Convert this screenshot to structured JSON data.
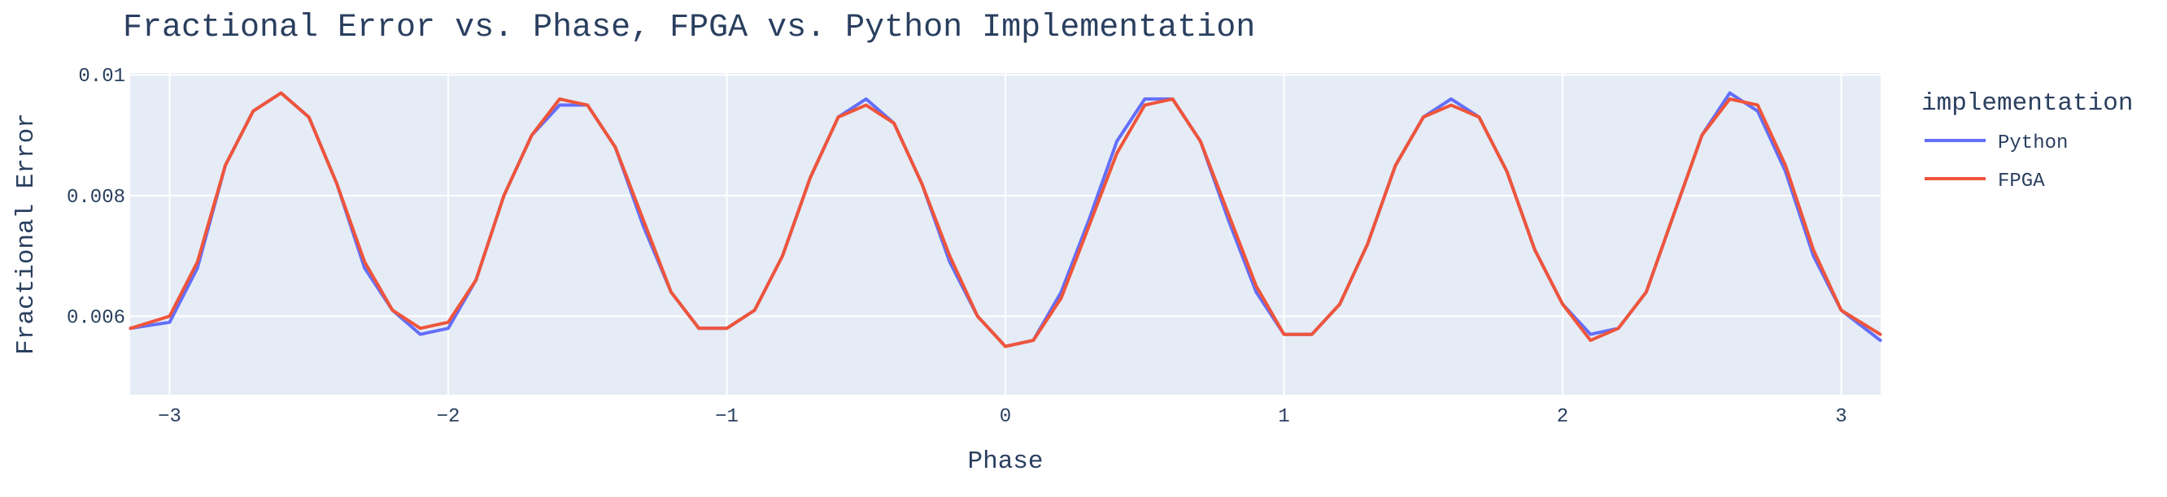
{
  "chart_data": {
    "type": "line",
    "title": "Fractional Error vs. Phase, FPGA vs. Python Implementation",
    "xlabel": "Phase",
    "ylabel": "Fractional Error",
    "xlim": [
      -3.1416,
      3.1416
    ],
    "ylim": [
      0.0047,
      0.01003
    ],
    "x_ticks": [
      -3,
      -2,
      -1,
      0,
      1,
      2,
      3
    ],
    "x_tick_labels": [
      "−3",
      "−2",
      "−1",
      "0",
      "1",
      "2",
      "3"
    ],
    "y_ticks": [
      0.006,
      0.008,
      0.01
    ],
    "y_tick_labels": [
      "0.006",
      "0.008",
      "0.01"
    ],
    "grid": true,
    "legend_title": "implementation",
    "legend_position": "right",
    "series": [
      {
        "name": "Python",
        "color": "#636efa",
        "points": [
          [
            -3.14,
            0.0058
          ],
          [
            -3.0,
            0.0059
          ],
          [
            -2.9,
            0.0068
          ],
          [
            -2.8,
            0.0085
          ],
          [
            -2.7,
            0.0094
          ],
          [
            -2.6,
            0.0097
          ],
          [
            -2.5,
            0.0093
          ],
          [
            -2.4,
            0.0082
          ],
          [
            -2.3,
            0.0068
          ],
          [
            -2.2,
            0.0061
          ],
          [
            -2.1,
            0.0057
          ],
          [
            -2.0,
            0.0058
          ],
          [
            -1.9,
            0.0066
          ],
          [
            -1.8,
            0.008
          ],
          [
            -1.7,
            0.009
          ],
          [
            -1.6,
            0.0095
          ],
          [
            -1.5,
            0.0095
          ],
          [
            -1.4,
            0.0088
          ],
          [
            -1.3,
            0.0075
          ],
          [
            -1.2,
            0.0064
          ],
          [
            -1.1,
            0.0058
          ],
          [
            -1.0,
            0.0058
          ],
          [
            -0.9,
            0.0061
          ],
          [
            -0.8,
            0.007
          ],
          [
            -0.7,
            0.0083
          ],
          [
            -0.6,
            0.0093
          ],
          [
            -0.5,
            0.0096
          ],
          [
            -0.4,
            0.0092
          ],
          [
            -0.3,
            0.0082
          ],
          [
            -0.2,
            0.0069
          ],
          [
            -0.1,
            0.006
          ],
          [
            0.0,
            0.0055
          ],
          [
            0.1,
            0.0056
          ],
          [
            0.2,
            0.0064
          ],
          [
            0.3,
            0.0076
          ],
          [
            0.4,
            0.0089
          ],
          [
            0.5,
            0.0096
          ],
          [
            0.6,
            0.0096
          ],
          [
            0.7,
            0.0089
          ],
          [
            0.8,
            0.0076
          ],
          [
            0.9,
            0.0064
          ],
          [
            1.0,
            0.0057
          ],
          [
            1.1,
            0.0057
          ],
          [
            1.2,
            0.0062
          ],
          [
            1.3,
            0.0072
          ],
          [
            1.4,
            0.0085
          ],
          [
            1.5,
            0.0093
          ],
          [
            1.6,
            0.0096
          ],
          [
            1.7,
            0.0093
          ],
          [
            1.8,
            0.0084
          ],
          [
            1.9,
            0.0071
          ],
          [
            2.0,
            0.0062
          ],
          [
            2.1,
            0.0057
          ],
          [
            2.2,
            0.0058
          ],
          [
            2.3,
            0.0064
          ],
          [
            2.4,
            0.0077
          ],
          [
            2.5,
            0.009
          ],
          [
            2.6,
            0.0097
          ],
          [
            2.7,
            0.0094
          ],
          [
            2.8,
            0.0084
          ],
          [
            2.9,
            0.007
          ],
          [
            3.0,
            0.0061
          ],
          [
            3.14,
            0.0056
          ]
        ]
      },
      {
        "name": "FPGA",
        "color": "#ef553b",
        "points": [
          [
            -3.14,
            0.0058
          ],
          [
            -3.0,
            0.006
          ],
          [
            -2.9,
            0.0069
          ],
          [
            -2.8,
            0.0085
          ],
          [
            -2.7,
            0.0094
          ],
          [
            -2.6,
            0.0097
          ],
          [
            -2.5,
            0.0093
          ],
          [
            -2.4,
            0.0082
          ],
          [
            -2.3,
            0.0069
          ],
          [
            -2.2,
            0.0061
          ],
          [
            -2.1,
            0.0058
          ],
          [
            -2.0,
            0.0059
          ],
          [
            -1.9,
            0.0066
          ],
          [
            -1.8,
            0.008
          ],
          [
            -1.7,
            0.009
          ],
          [
            -1.6,
            0.0096
          ],
          [
            -1.5,
            0.0095
          ],
          [
            -1.4,
            0.0088
          ],
          [
            -1.3,
            0.0076
          ],
          [
            -1.2,
            0.0064
          ],
          [
            -1.1,
            0.0058
          ],
          [
            -1.0,
            0.0058
          ],
          [
            -0.9,
            0.0061
          ],
          [
            -0.8,
            0.007
          ],
          [
            -0.7,
            0.0083
          ],
          [
            -0.6,
            0.0093
          ],
          [
            -0.5,
            0.0095
          ],
          [
            -0.4,
            0.0092
          ],
          [
            -0.3,
            0.0082
          ],
          [
            -0.2,
            0.007
          ],
          [
            -0.1,
            0.006
          ],
          [
            0.0,
            0.0055
          ],
          [
            0.1,
            0.0056
          ],
          [
            0.2,
            0.0063
          ],
          [
            0.3,
            0.0075
          ],
          [
            0.4,
            0.0087
          ],
          [
            0.5,
            0.0095
          ],
          [
            0.6,
            0.0096
          ],
          [
            0.7,
            0.0089
          ],
          [
            0.8,
            0.0077
          ],
          [
            0.9,
            0.0065
          ],
          [
            1.0,
            0.0057
          ],
          [
            1.1,
            0.0057
          ],
          [
            1.2,
            0.0062
          ],
          [
            1.3,
            0.0072
          ],
          [
            1.4,
            0.0085
          ],
          [
            1.5,
            0.0093
          ],
          [
            1.6,
            0.0095
          ],
          [
            1.7,
            0.0093
          ],
          [
            1.8,
            0.0084
          ],
          [
            1.9,
            0.0071
          ],
          [
            2.0,
            0.0062
          ],
          [
            2.1,
            0.0056
          ],
          [
            2.2,
            0.0058
          ],
          [
            2.3,
            0.0064
          ],
          [
            2.4,
            0.0077
          ],
          [
            2.5,
            0.009
          ],
          [
            2.6,
            0.0096
          ],
          [
            2.7,
            0.0095
          ],
          [
            2.8,
            0.0085
          ],
          [
            2.9,
            0.0071
          ],
          [
            3.0,
            0.0061
          ],
          [
            3.14,
            0.0057
          ]
        ]
      }
    ]
  },
  "colors": {
    "plot_background": "#e5ecf6",
    "grid": "#ffffff",
    "text": "#2a3f5f"
  }
}
